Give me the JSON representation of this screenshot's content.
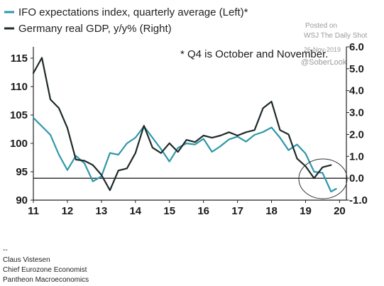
{
  "legend": {
    "ifo_label": "IFO expectations index, quarterly average (Left)*",
    "gdp_label": "Germany real GDP, y/y% (Right)",
    "ifo_color": "#2e97a8",
    "gdp_color": "#1f2a2a"
  },
  "note": "* Q4 is October and November.",
  "watermark": {
    "posted": "Posted on",
    "source": "WSJ  The Daily Shot",
    "date": "26-Nov-2019",
    "handle": "@SoberLook"
  },
  "signature": {
    "dash": "--",
    "name": "Claus Vistesen",
    "title": "Chief Eurozone Economist",
    "company": "Pantheon Macroeconomics"
  },
  "chart_data": {
    "type": "line",
    "x_ticks": [
      "11",
      "12",
      "13",
      "14",
      "15",
      "16",
      "17",
      "18",
      "19",
      "20"
    ],
    "xlim": [
      2011,
      2020.2
    ],
    "left_axis": {
      "ticks": [
        "90",
        "95",
        "100",
        "105",
        "110",
        "115"
      ],
      "ylim": [
        90,
        117
      ]
    },
    "right_axis": {
      "ticks": [
        "-1.0",
        "0.0",
        "1.0",
        "2.0",
        "3.0",
        "4.0",
        "5.0",
        "6.0"
      ],
      "ylim": [
        -1,
        6
      ]
    },
    "reference_line": {
      "axis": "right",
      "value": 0.0
    },
    "series": [
      {
        "name": "IFO expectations index, quarterly average (Left)*",
        "axis": "left",
        "x": [
          2011.0,
          2011.25,
          2011.5,
          2011.75,
          2012.0,
          2012.25,
          2012.5,
          2012.75,
          2013.0,
          2013.25,
          2013.5,
          2013.75,
          2014.0,
          2014.25,
          2014.5,
          2014.75,
          2015.0,
          2015.25,
          2015.5,
          2015.75,
          2016.0,
          2016.25,
          2016.5,
          2016.75,
          2017.0,
          2017.25,
          2017.5,
          2017.75,
          2018.0,
          2018.25,
          2018.5,
          2018.75,
          2019.0,
          2019.25,
          2019.5,
          2019.75,
          2019.9
        ],
        "values": [
          104.5,
          103.0,
          101.5,
          98.0,
          95.3,
          97.8,
          96.5,
          93.3,
          94.2,
          98.3,
          98.0,
          100.0,
          101.0,
          103.0,
          101.0,
          99.0,
          96.8,
          99.2,
          100.0,
          99.8,
          100.8,
          98.5,
          99.5,
          100.7,
          101.2,
          100.3,
          101.5,
          102.0,
          102.8,
          101.0,
          98.8,
          99.8,
          98.2,
          95.0,
          94.8,
          91.5,
          92.0
        ]
      },
      {
        "name": "Germany real GDP, y/y% (Right)",
        "axis": "right",
        "x": [
          2011.0,
          2011.25,
          2011.5,
          2011.75,
          2012.0,
          2012.25,
          2012.5,
          2012.75,
          2013.0,
          2013.25,
          2013.5,
          2013.75,
          2014.0,
          2014.25,
          2014.5,
          2014.75,
          2015.0,
          2015.25,
          2015.5,
          2015.75,
          2016.0,
          2016.25,
          2016.5,
          2016.75,
          2017.0,
          2017.25,
          2017.5,
          2017.75,
          2018.0,
          2018.25,
          2018.5,
          2018.75,
          2019.0,
          2019.25,
          2019.5,
          2019.75
        ],
        "values": [
          4.8,
          5.5,
          3.6,
          3.2,
          2.3,
          0.85,
          0.8,
          0.6,
          0.15,
          -0.55,
          0.35,
          0.45,
          1.15,
          2.4,
          1.4,
          1.15,
          1.6,
          1.2,
          1.75,
          1.65,
          1.95,
          1.85,
          1.95,
          2.1,
          1.95,
          2.1,
          2.2,
          3.2,
          3.5,
          2.2,
          2.0,
          0.9,
          0.55,
          0.0,
          0.5,
          0.6
        ]
      }
    ]
  }
}
